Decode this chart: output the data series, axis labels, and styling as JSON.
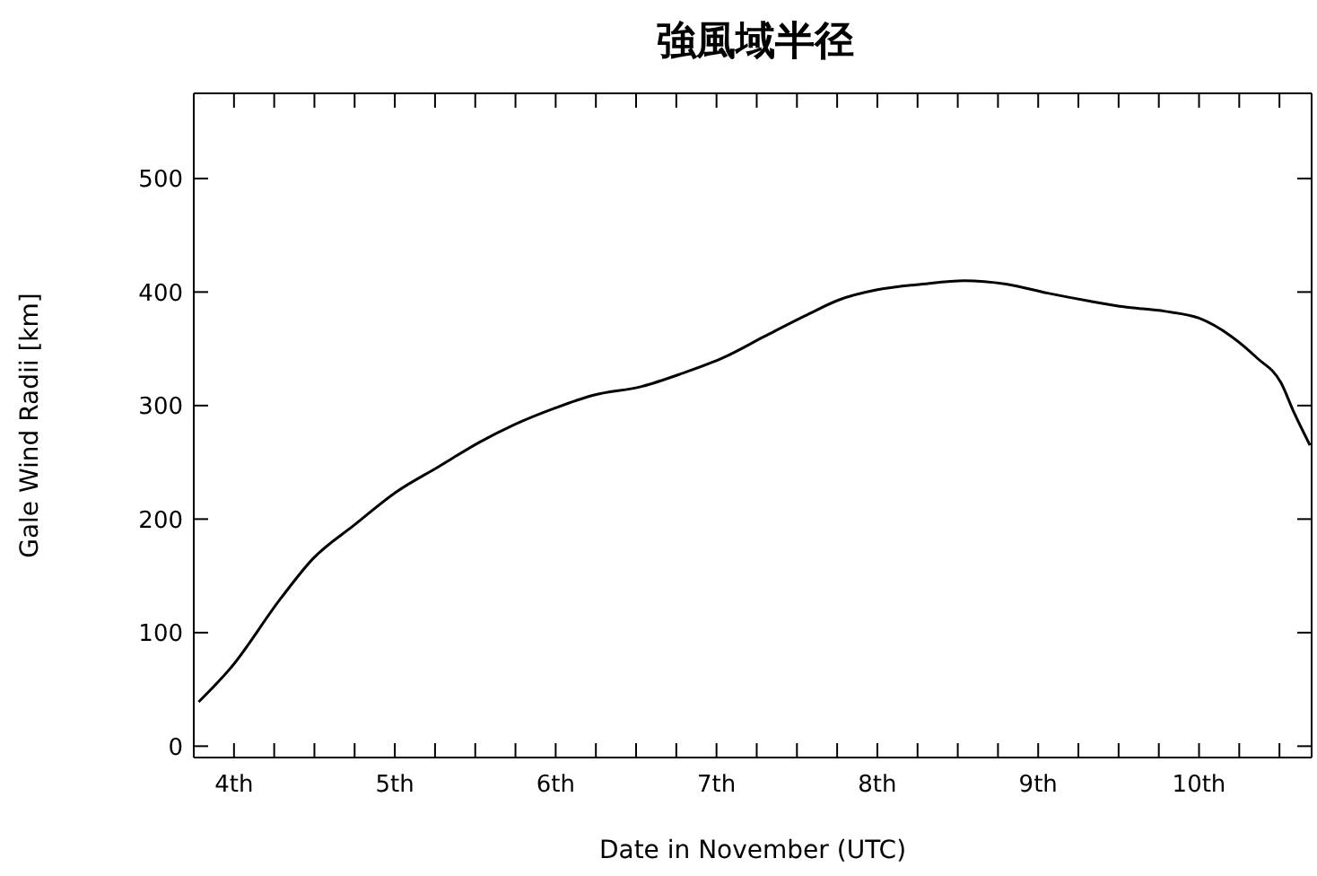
{
  "chart_data": {
    "type": "line",
    "title": "強風域半径",
    "xlabel": "Date in November (UTC)",
    "ylabel": "Gale Wind Radii [km]",
    "x": [
      3.78,
      3.98,
      4.29,
      4.49,
      4.75,
      5.01,
      5.27,
      5.53,
      5.74,
      6.0,
      6.23,
      6.54,
      6.78,
      7.04,
      7.3,
      7.55,
      7.76,
      8.0,
      8.28,
      8.54,
      8.8,
      9.06,
      9.32,
      9.53,
      9.79,
      10.0,
      10.2,
      10.36,
      10.51,
      10.59,
      10.69
    ],
    "series": [
      {
        "color": "#000000",
        "values": [
          39,
          69,
          130,
          165,
          195,
          224,
          246,
          268,
          283,
          298,
          309,
          317,
          328,
          342,
          361,
          379,
          393,
          402,
          407,
          410,
          407,
          399,
          392,
          387,
          383,
          377,
          361,
          342,
          320,
          294,
          265
        ]
      }
    ],
    "xlim": [
      3.75,
      10.7
    ],
    "xticks": [
      {
        "value": 4,
        "label": "4th"
      },
      {
        "value": 4.25,
        "label": null
      },
      {
        "value": 4.5,
        "label": null
      },
      {
        "value": 4.75,
        "label": null
      },
      {
        "value": 5,
        "label": "5th"
      },
      {
        "value": 5.25,
        "label": null
      },
      {
        "value": 5.5,
        "label": null
      },
      {
        "value": 5.75,
        "label": null
      },
      {
        "value": 6,
        "label": "6th"
      },
      {
        "value": 6.25,
        "label": null
      },
      {
        "value": 6.5,
        "label": null
      },
      {
        "value": 6.75,
        "label": null
      },
      {
        "value": 7,
        "label": "7th"
      },
      {
        "value": 7.25,
        "label": null
      },
      {
        "value": 7.5,
        "label": null
      },
      {
        "value": 7.75,
        "label": null
      },
      {
        "value": 8,
        "label": "8th"
      },
      {
        "value": 8.25,
        "label": null
      },
      {
        "value": 8.5,
        "label": null
      },
      {
        "value": 8.75,
        "label": null
      },
      {
        "value": 9,
        "label": "9th"
      },
      {
        "value": 9.25,
        "label": null
      },
      {
        "value": 9.5,
        "label": null
      },
      {
        "value": 9.75,
        "label": null
      },
      {
        "value": 10,
        "label": "10th"
      },
      {
        "value": 10.25,
        "label": null
      },
      {
        "value": 10.5,
        "label": null
      }
    ],
    "ylim": [
      -10,
      575
    ],
    "yticks": [
      0,
      100,
      200,
      300,
      400,
      500
    ],
    "marker": "none",
    "line_style": "solid"
  }
}
